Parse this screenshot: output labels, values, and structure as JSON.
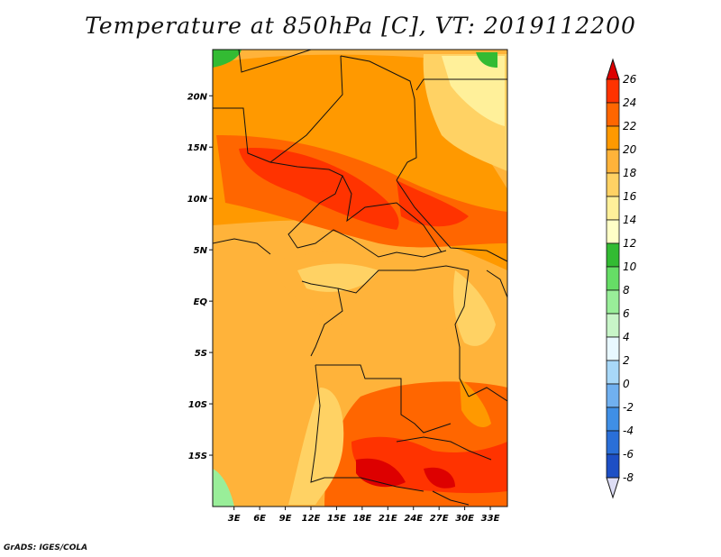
{
  "title": "Temperature at 850hPa [C], VT: 2019112200",
  "footer": "GrADS: IGES/COLA",
  "map": {
    "lat_labels": [
      "20N",
      "15N",
      "10N",
      "5N",
      "EQ",
      "5S",
      "10S",
      "15S"
    ],
    "lat_values": [
      20,
      15,
      10,
      5,
      0,
      -5,
      -10,
      -15
    ],
    "lon_labels": [
      "3E",
      "6E",
      "9E",
      "12E",
      "15E",
      "18E",
      "21E",
      "24E",
      "27E",
      "30E",
      "33E"
    ],
    "lon_values": [
      3,
      6,
      9,
      12,
      15,
      18,
      21,
      24,
      27,
      30,
      33
    ],
    "lat_range": [
      -20,
      24.5
    ],
    "lon_range": [
      0.5,
      35
    ]
  },
  "colorbar": {
    "labels": [
      "26",
      "24",
      "22",
      "20",
      "18",
      "16",
      "14",
      "12",
      "10",
      "8",
      "6",
      "4",
      "2",
      "0",
      "-2",
      "-4",
      "-6",
      "-8"
    ],
    "colors": [
      "#dd0000",
      "#ff3300",
      "#ff6600",
      "#ff9900",
      "#ffb33a",
      "#ffd264",
      "#fff09a",
      "#ffffc7",
      "#33bb33",
      "#66dd66",
      "#99ee99",
      "#c8f5c8",
      "#e8f8ff",
      "#a8d8f8",
      "#70b0f0",
      "#3f8fe6",
      "#2a6fd8",
      "#1d4fc5",
      "#123aa8",
      "#0a1f6b",
      "#ddddf5"
    ],
    "over_color": "#dd0000",
    "under_color": "#ddddf5"
  }
}
